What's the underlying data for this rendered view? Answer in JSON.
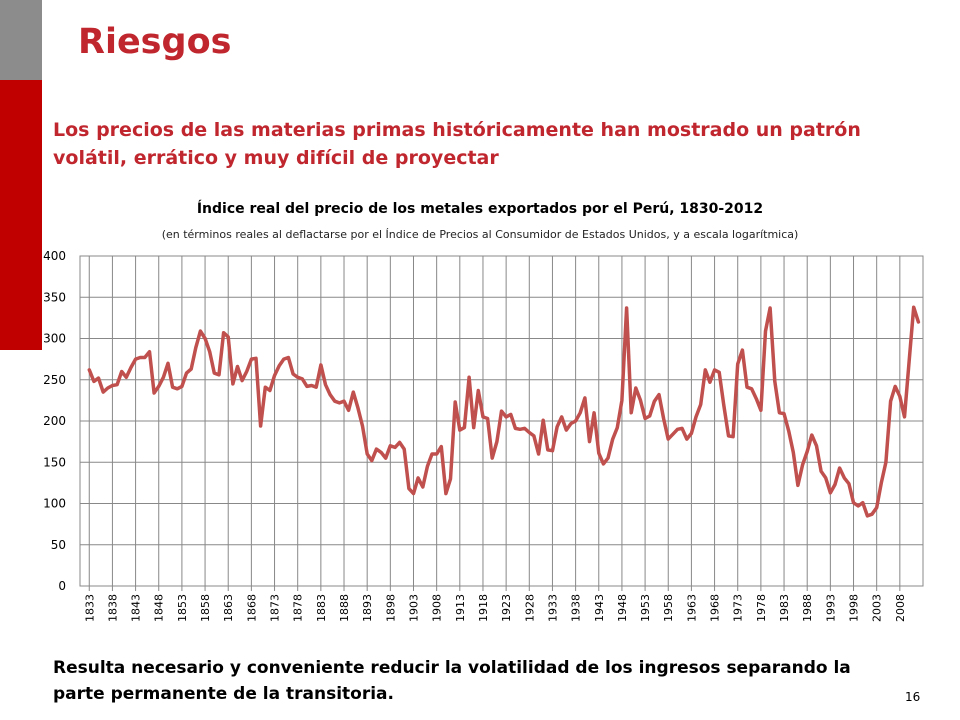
{
  "slide": {
    "title": "Riesgos",
    "subtitle": "Los precios de las materias primas históricamente han mostrado un patrón volátil, errático y muy difícil de proyectar",
    "footer": "Resulta necesario y conveniente reducir la volatilidad de los ingresos separando la parte permanente de la transitoria.",
    "page_number": "16"
  },
  "colors": {
    "accent": "#c0262e",
    "line": "#c0504d",
    "bar_red": "#c00000",
    "bar_gray": "#8c8c8c"
  },
  "chart_data": {
    "type": "line",
    "title": "Índice real del precio de los metales exportados por el Perú, 1830-2012",
    "subtitle": "(en términos reales al deflactarse por el Índice de Precios al Consumidor de Estados Unidos, y a escala logarítmica)",
    "xlabel": "",
    "ylabel": "",
    "ylim": [
      0,
      400
    ],
    "yticks": [
      0,
      50,
      100,
      150,
      200,
      250,
      300,
      350,
      400
    ],
    "x_tick_labels": [
      "1833",
      "1838",
      "1843",
      "1848",
      "1853",
      "1858",
      "1863",
      "1868",
      "1873",
      "1878",
      "1883",
      "1888",
      "1893",
      "1898",
      "1903",
      "1908",
      "1913",
      "1918",
      "1923",
      "1928",
      "1933",
      "1938",
      "1943",
      "1948",
      "1953",
      "1958",
      "1963",
      "1968",
      "1973",
      "1978",
      "1983",
      "1988",
      "1993",
      "1998",
      "2003",
      "2008"
    ],
    "grid": true,
    "series": [
      {
        "name": "Índice real del precio de los metales",
        "x": [
          1833,
          1834,
          1835,
          1836,
          1837,
          1838,
          1839,
          1840,
          1841,
          1842,
          1843,
          1844,
          1845,
          1846,
          1847,
          1848,
          1849,
          1850,
          1851,
          1852,
          1853,
          1854,
          1855,
          1856,
          1857,
          1858,
          1859,
          1860,
          1861,
          1862,
          1863,
          1864,
          1865,
          1866,
          1867,
          1868,
          1869,
          1870,
          1871,
          1872,
          1873,
          1874,
          1875,
          1876,
          1877,
          1878,
          1879,
          1880,
          1881,
          1882,
          1883,
          1884,
          1885,
          1886,
          1887,
          1888,
          1889,
          1890,
          1891,
          1892,
          1893,
          1894,
          1895,
          1896,
          1897,
          1898,
          1899,
          1900,
          1901,
          1902,
          1903,
          1904,
          1905,
          1906,
          1907,
          1908,
          1909,
          1910,
          1911,
          1912,
          1913,
          1914,
          1915,
          1916,
          1917,
          1918,
          1919,
          1920,
          1921,
          1922,
          1923,
          1924,
          1925,
          1926,
          1927,
          1928,
          1929,
          1930,
          1931,
          1932,
          1933,
          1934,
          1935,
          1936,
          1937,
          1938,
          1939,
          1940,
          1941,
          1942,
          1943,
          1944,
          1945,
          1946,
          1947,
          1948,
          1949,
          1950,
          1951,
          1952,
          1953,
          1954,
          1955,
          1956,
          1957,
          1958,
          1959,
          1960,
          1961,
          1962,
          1963,
          1964,
          1965,
          1966,
          1967,
          1968,
          1969,
          1970,
          1971,
          1972,
          1973,
          1974,
          1975,
          1976,
          1977,
          1978,
          1979,
          1980,
          1981,
          1982,
          1983,
          1984,
          1985,
          1986,
          1987,
          1988,
          1989,
          1990,
          1991,
          1992,
          1993,
          1994,
          1995,
          1996,
          1997,
          1998,
          1999,
          2000,
          2001,
          2002,
          2003,
          2004,
          2005,
          2006,
          2007,
          2008,
          2009,
          2010,
          2011,
          2012
        ],
        "values": [
          262,
          248,
          252,
          235,
          240,
          243,
          244,
          260,
          253,
          265,
          275,
          277,
          277,
          284,
          234,
          242,
          253,
          270,
          241,
          239,
          242,
          258,
          263,
          289,
          309,
          300,
          284,
          258,
          256,
          307,
          302,
          245,
          266,
          249,
          260,
          275,
          276,
          194,
          241,
          237,
          255,
          267,
          275,
          277,
          257,
          253,
          251,
          242,
          243,
          241,
          268,
          244,
          232,
          224,
          222,
          224,
          213,
          235,
          216,
          194,
          160,
          152,
          166,
          162,
          155,
          170,
          168,
          174,
          166,
          118,
          112,
          131,
          120,
          145,
          160,
          160,
          169,
          112,
          130,
          223,
          189,
          192,
          253,
          192,
          237,
          205,
          203,
          155,
          175,
          212,
          205,
          208,
          191,
          190,
          191,
          186,
          182,
          160,
          201,
          165,
          164,
          193,
          205,
          189,
          197,
          200,
          210,
          228,
          175,
          210,
          161,
          148,
          155,
          178,
          192,
          225,
          337,
          210,
          240,
          225,
          203,
          206,
          224,
          232,
          203,
          178,
          184,
          190,
          191,
          178,
          185,
          205,
          220,
          262,
          247,
          262,
          259,
          219,
          182,
          181,
          269,
          286,
          241,
          239,
          227,
          213,
          309,
          337,
          248,
          210,
          209,
          188,
          162,
          122,
          147,
          163,
          183,
          170,
          139,
          131,
          113,
          123,
          143,
          131,
          124,
          101,
          97,
          101,
          85,
          87,
          95,
          125,
          150,
          224,
          242,
          230,
          205,
          272,
          338,
          320
        ]
      }
    ]
  }
}
